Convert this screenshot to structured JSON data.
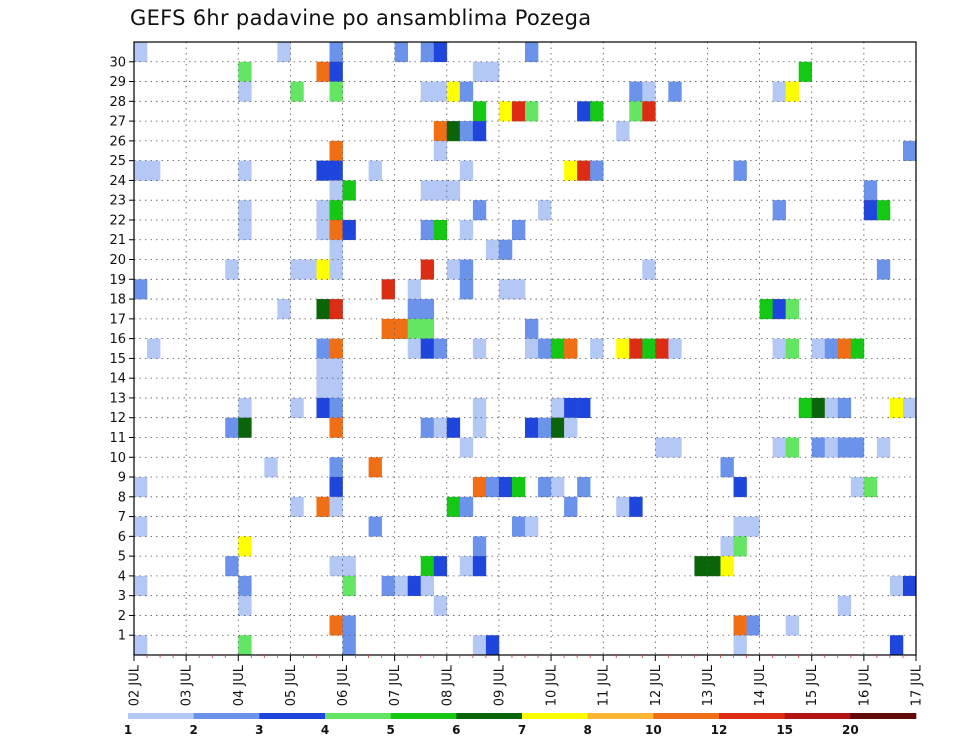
{
  "title": "GEFS 6hr padavine po ansamblima Pozega",
  "chart_data": {
    "type": "heatmap",
    "title": "GEFS 6hr padavine po ansamblima Pozega",
    "x_tick_labels": [
      "02 JUL",
      "03 JUL",
      "04 JUL",
      "05 JUL",
      "06 JUL",
      "07 JUL",
      "08 JUL",
      "09 JUL",
      "10 JUL",
      "11 JUL",
      "12 JUL",
      "13 JUL",
      "14 JUL",
      "15 JUL",
      "16 JUL",
      "17 JUL"
    ],
    "x_steps_per_day": 4,
    "x_step_count": 60,
    "y_tick_labels": [
      "1",
      "2",
      "3",
      "4",
      "5",
      "6",
      "7",
      "8",
      "9",
      "10",
      "11",
      "12",
      "13",
      "14",
      "15",
      "16",
      "17",
      "18",
      "19",
      "20",
      "21",
      "22",
      "23",
      "24",
      "25",
      "26",
      "27",
      "28",
      "29",
      "30"
    ],
    "y_rows": 31,
    "grid": true,
    "colorbar": {
      "levels": [
        "1",
        "2",
        "3",
        "4",
        "5",
        "6",
        "7",
        "8",
        "10",
        "12",
        "15",
        "20"
      ],
      "colors": [
        "#b4c8f5",
        "#6b93eb",
        "#1e46dc",
        "#64e664",
        "#14c814",
        "#0a640a",
        "#ffff00",
        "#ffb432",
        "#f06e14",
        "#dc2d14",
        "#b41414",
        "#640a0a"
      ]
    },
    "legend_position": "bottom",
    "cells_format": "[column_step, member_row, color_class]",
    "cells": [
      [
        0,
        30,
        0
      ],
      [
        11,
        30,
        0
      ],
      [
        15,
        30,
        1
      ],
      [
        20,
        30,
        1
      ],
      [
        22,
        30,
        1
      ],
      [
        23,
        30,
        2
      ],
      [
        30,
        30,
        1
      ],
      [
        8,
        29,
        3
      ],
      [
        14,
        29,
        8
      ],
      [
        15,
        29,
        2
      ],
      [
        26,
        29,
        0
      ],
      [
        27,
        29,
        0
      ],
      [
        51,
        29,
        4
      ],
      [
        8,
        28,
        0
      ],
      [
        12,
        28,
        3
      ],
      [
        15,
        28,
        3
      ],
      [
        22,
        28,
        0
      ],
      [
        23,
        28,
        0
      ],
      [
        24,
        28,
        6
      ],
      [
        25,
        28,
        1
      ],
      [
        38,
        28,
        1
      ],
      [
        39,
        28,
        0
      ],
      [
        41,
        28,
        1
      ],
      [
        49,
        28,
        0
      ],
      [
        50,
        28,
        6
      ],
      [
        26,
        27,
        4
      ],
      [
        28,
        27,
        6
      ],
      [
        29,
        27,
        9
      ],
      [
        30,
        27,
        3
      ],
      [
        34,
        27,
        2
      ],
      [
        35,
        27,
        4
      ],
      [
        38,
        27,
        3
      ],
      [
        39,
        27,
        9
      ],
      [
        23,
        26,
        8
      ],
      [
        24,
        26,
        5
      ],
      [
        25,
        26,
        1
      ],
      [
        26,
        26,
        2
      ],
      [
        37,
        26,
        0
      ],
      [
        15,
        25,
        8
      ],
      [
        23,
        25,
        0
      ],
      [
        59,
        25,
        1
      ],
      [
        0,
        24,
        0
      ],
      [
        1,
        24,
        0
      ],
      [
        8,
        24,
        0
      ],
      [
        14,
        24,
        2
      ],
      [
        15,
        24,
        2
      ],
      [
        18,
        24,
        0
      ],
      [
        25,
        24,
        0
      ],
      [
        33,
        24,
        6
      ],
      [
        34,
        24,
        9
      ],
      [
        35,
        24,
        1
      ],
      [
        46,
        24,
        1
      ],
      [
        15,
        23,
        0
      ],
      [
        16,
        23,
        4
      ],
      [
        22,
        23,
        0
      ],
      [
        23,
        23,
        0
      ],
      [
        24,
        23,
        0
      ],
      [
        56,
        23,
        1
      ],
      [
        8,
        22,
        0
      ],
      [
        14,
        22,
        0
      ],
      [
        15,
        22,
        4
      ],
      [
        26,
        22,
        1
      ],
      [
        31,
        22,
        0
      ],
      [
        49,
        22,
        1
      ],
      [
        56,
        22,
        2
      ],
      [
        57,
        22,
        4
      ],
      [
        8,
        21,
        0
      ],
      [
        14,
        21,
        0
      ],
      [
        15,
        21,
        8
      ],
      [
        16,
        21,
        2
      ],
      [
        22,
        21,
        1
      ],
      [
        23,
        21,
        4
      ],
      [
        25,
        21,
        0
      ],
      [
        29,
        21,
        1
      ],
      [
        15,
        20,
        0
      ],
      [
        27,
        20,
        0
      ],
      [
        28,
        20,
        1
      ],
      [
        7,
        19,
        0
      ],
      [
        12,
        19,
        0
      ],
      [
        13,
        19,
        0
      ],
      [
        14,
        19,
        6
      ],
      [
        15,
        19,
        0
      ],
      [
        22,
        19,
        9
      ],
      [
        24,
        19,
        0
      ],
      [
        25,
        19,
        1
      ],
      [
        39,
        19,
        0
      ],
      [
        57,
        19,
        1
      ],
      [
        0,
        18,
        1
      ],
      [
        19,
        18,
        9
      ],
      [
        21,
        18,
        0
      ],
      [
        25,
        18,
        1
      ],
      [
        28,
        18,
        0
      ],
      [
        29,
        18,
        0
      ],
      [
        11,
        17,
        0
      ],
      [
        14,
        17,
        5
      ],
      [
        15,
        17,
        9
      ],
      [
        21,
        17,
        1
      ],
      [
        22,
        17,
        1
      ],
      [
        48,
        17,
        4
      ],
      [
        49,
        17,
        2
      ],
      [
        50,
        17,
        3
      ],
      [
        19,
        16,
        8
      ],
      [
        20,
        16,
        8
      ],
      [
        21,
        16,
        3
      ],
      [
        22,
        16,
        3
      ],
      [
        30,
        16,
        1
      ],
      [
        1,
        15,
        0
      ],
      [
        14,
        15,
        1
      ],
      [
        15,
        15,
        8
      ],
      [
        21,
        15,
        0
      ],
      [
        22,
        15,
        2
      ],
      [
        23,
        15,
        1
      ],
      [
        26,
        15,
        0
      ],
      [
        30,
        15,
        0
      ],
      [
        31,
        15,
        1
      ],
      [
        32,
        15,
        4
      ],
      [
        33,
        15,
        8
      ],
      [
        35,
        15,
        0
      ],
      [
        37,
        15,
        6
      ],
      [
        38,
        15,
        9
      ],
      [
        39,
        15,
        4
      ],
      [
        40,
        15,
        9
      ],
      [
        41,
        15,
        0
      ],
      [
        49,
        15,
        0
      ],
      [
        50,
        15,
        3
      ],
      [
        52,
        15,
        0
      ],
      [
        53,
        15,
        1
      ],
      [
        54,
        15,
        8
      ],
      [
        55,
        15,
        4
      ],
      [
        14,
        14,
        0
      ],
      [
        15,
        14,
        0
      ],
      [
        14,
        13,
        0
      ],
      [
        15,
        13,
        0
      ],
      [
        8,
        12,
        0
      ],
      [
        12,
        12,
        0
      ],
      [
        14,
        12,
        2
      ],
      [
        15,
        12,
        1
      ],
      [
        26,
        12,
        0
      ],
      [
        32,
        12,
        0
      ],
      [
        33,
        12,
        2
      ],
      [
        34,
        12,
        2
      ],
      [
        51,
        12,
        4
      ],
      [
        52,
        12,
        5
      ],
      [
        53,
        12,
        0
      ],
      [
        54,
        12,
        1
      ],
      [
        58,
        12,
        6
      ],
      [
        59,
        12,
        0
      ],
      [
        7,
        11,
        1
      ],
      [
        8,
        11,
        5
      ],
      [
        15,
        11,
        8
      ],
      [
        22,
        11,
        1
      ],
      [
        23,
        11,
        0
      ],
      [
        24,
        11,
        2
      ],
      [
        26,
        11,
        0
      ],
      [
        30,
        11,
        2
      ],
      [
        31,
        11,
        1
      ],
      [
        32,
        11,
        5
      ],
      [
        33,
        11,
        0
      ],
      [
        25,
        10,
        0
      ],
      [
        40,
        10,
        0
      ],
      [
        41,
        10,
        0
      ],
      [
        49,
        10,
        0
      ],
      [
        50,
        10,
        3
      ],
      [
        52,
        10,
        1
      ],
      [
        53,
        10,
        0
      ],
      [
        54,
        10,
        1
      ],
      [
        55,
        10,
        1
      ],
      [
        57,
        10,
        0
      ],
      [
        10,
        9,
        0
      ],
      [
        15,
        9,
        1
      ],
      [
        18,
        9,
        8
      ],
      [
        45,
        9,
        1
      ],
      [
        0,
        8,
        0
      ],
      [
        15,
        8,
        2
      ],
      [
        26,
        8,
        8
      ],
      [
        27,
        8,
        1
      ],
      [
        28,
        8,
        2
      ],
      [
        29,
        8,
        4
      ],
      [
        31,
        8,
        1
      ],
      [
        32,
        8,
        0
      ],
      [
        34,
        8,
        1
      ],
      [
        46,
        8,
        2
      ],
      [
        55,
        8,
        0
      ],
      [
        56,
        8,
        3
      ],
      [
        12,
        7,
        0
      ],
      [
        14,
        7,
        8
      ],
      [
        15,
        7,
        0
      ],
      [
        24,
        7,
        4
      ],
      [
        25,
        7,
        1
      ],
      [
        33,
        7,
        1
      ],
      [
        37,
        7,
        0
      ],
      [
        38,
        7,
        2
      ],
      [
        0,
        6,
        0
      ],
      [
        18,
        6,
        1
      ],
      [
        29,
        6,
        1
      ],
      [
        30,
        6,
        0
      ],
      [
        46,
        6,
        0
      ],
      [
        47,
        6,
        0
      ],
      [
        8,
        5,
        6
      ],
      [
        26,
        5,
        1
      ],
      [
        45,
        5,
        0
      ],
      [
        46,
        5,
        3
      ],
      [
        7,
        4,
        1
      ],
      [
        15,
        4,
        0
      ],
      [
        16,
        4,
        0
      ],
      [
        22,
        4,
        4
      ],
      [
        23,
        4,
        2
      ],
      [
        25,
        4,
        0
      ],
      [
        26,
        4,
        2
      ],
      [
        43,
        4,
        5
      ],
      [
        44,
        4,
        5
      ],
      [
        45,
        4,
        6
      ],
      [
        0,
        3,
        0
      ],
      [
        8,
        3,
        1
      ],
      [
        16,
        3,
        3
      ],
      [
        19,
        3,
        1
      ],
      [
        20,
        3,
        0
      ],
      [
        21,
        3,
        2
      ],
      [
        22,
        3,
        0
      ],
      [
        58,
        3,
        0
      ],
      [
        59,
        3,
        2
      ],
      [
        8,
        2,
        0
      ],
      [
        23,
        2,
        0
      ],
      [
        54,
        2,
        0
      ],
      [
        15,
        1,
        8
      ],
      [
        16,
        1,
        1
      ],
      [
        46,
        1,
        8
      ],
      [
        47,
        1,
        1
      ],
      [
        50,
        1,
        0
      ],
      [
        0,
        0,
        0
      ],
      [
        8,
        0,
        3
      ],
      [
        16,
        0,
        1
      ],
      [
        26,
        0,
        0
      ],
      [
        27,
        0,
        2
      ],
      [
        46,
        0,
        0
      ],
      [
        58,
        0,
        2
      ]
    ]
  }
}
